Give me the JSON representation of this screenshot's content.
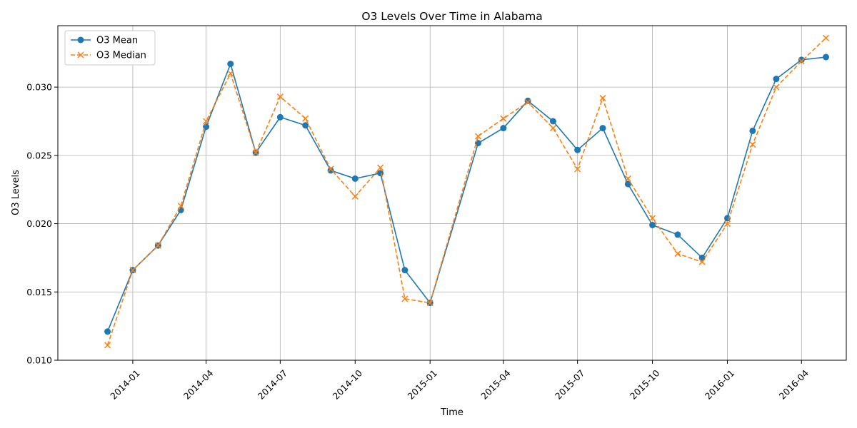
{
  "chart_data": {
    "type": "line",
    "title": "O3 Levels Over Time in Alabama",
    "xlabel": "Time",
    "ylabel": "O3 Levels",
    "ylim": [
      0.01,
      0.0345
    ],
    "xlim": [
      "2013-10-01",
      "2016-05-26"
    ],
    "grid": true,
    "legend_position": "top-left",
    "x_ticks": [
      "2014-01",
      "2014-04",
      "2014-07",
      "2014-10",
      "2015-01",
      "2015-04",
      "2015-07",
      "2015-10",
      "2016-01",
      "2016-04"
    ],
    "y_ticks": [
      "0.010",
      "0.015",
      "0.020",
      "0.025",
      "0.030"
    ],
    "x": [
      "2013-12-01",
      "2014-01-01",
      "2014-02-01",
      "2014-03-01",
      "2014-04-01",
      "2014-05-01",
      "2014-06-01",
      "2014-07-01",
      "2014-08-01",
      "2014-09-01",
      "2014-10-01",
      "2014-11-01",
      "2014-12-01",
      "2015-01-01",
      "2015-03-01",
      "2015-04-01",
      "2015-05-01",
      "2015-06-01",
      "2015-07-01",
      "2015-08-01",
      "2015-09-01",
      "2015-10-01",
      "2015-11-01",
      "2015-12-01",
      "2016-01-01",
      "2016-02-01",
      "2016-03-01",
      "2016-04-01",
      "2016-05-01"
    ],
    "series": [
      {
        "name": "O3 Mean",
        "color": "#1f77b4",
        "marker": "circle",
        "linestyle": "solid",
        "values": [
          0.0121,
          0.0166,
          0.0184,
          0.021,
          0.0271,
          0.0317,
          0.0252,
          0.0278,
          0.0272,
          0.0239,
          0.0233,
          0.0237,
          0.0166,
          0.0142,
          0.0259,
          0.027,
          0.029,
          0.0275,
          0.0254,
          0.027,
          0.0229,
          0.0199,
          0.0192,
          0.0175,
          0.0204,
          0.0268,
          0.0306,
          0.032,
          0.0322
        ]
      },
      {
        "name": "O3 Median",
        "color": "#ff7f0e",
        "marker": "x",
        "linestyle": "dashed",
        "values": [
          0.0111,
          0.0166,
          0.0184,
          0.0213,
          0.0275,
          0.031,
          0.0252,
          0.0293,
          0.0277,
          0.024,
          0.022,
          0.0241,
          0.0145,
          0.0142,
          0.0264,
          0.0277,
          0.0289,
          0.027,
          0.024,
          0.0292,
          0.0233,
          0.0204,
          0.0178,
          0.0172,
          0.02,
          0.0258,
          0.03,
          0.0319,
          0.0336
        ]
      }
    ]
  }
}
